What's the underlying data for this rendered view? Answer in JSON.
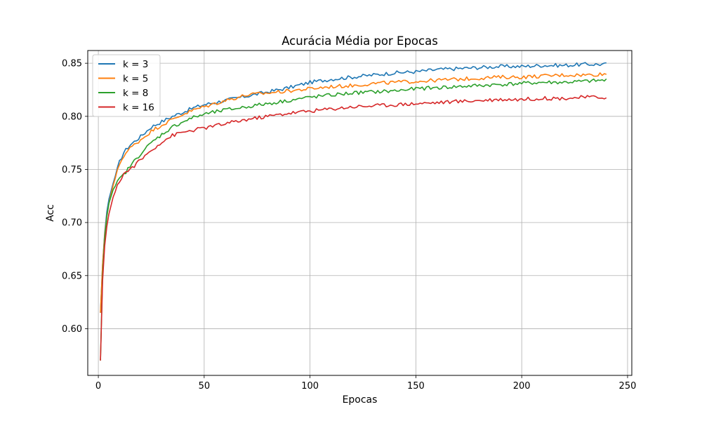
{
  "chart_data": {
    "type": "line",
    "title": "Acurácia Média por Epocas",
    "xlabel": "Epocas",
    "ylabel": "Acc",
    "xlim": [
      -5,
      252
    ],
    "ylim": [
      0.556,
      0.862
    ],
    "xticks": [
      0,
      50,
      100,
      150,
      200,
      250
    ],
    "yticks": [
      0.6,
      0.65,
      0.7,
      0.75,
      0.8,
      0.85
    ],
    "ytick_labels": [
      "0.60",
      "0.65",
      "0.70",
      "0.75",
      "0.80",
      "0.85"
    ],
    "grid": true,
    "legend_position": "top-left",
    "x_range": [
      1,
      240
    ],
    "series": [
      {
        "name": "k = 3",
        "color": "#1f77b4",
        "points": [
          [
            1,
            0.615
          ],
          [
            2,
            0.66
          ],
          [
            3,
            0.69
          ],
          [
            4,
            0.71
          ],
          [
            5,
            0.722
          ],
          [
            7,
            0.737
          ],
          [
            10,
            0.757
          ],
          [
            12,
            0.766
          ],
          [
            15,
            0.773
          ],
          [
            20,
            0.781
          ],
          [
            25,
            0.79
          ],
          [
            30,
            0.795
          ],
          [
            35,
            0.8
          ],
          [
            40,
            0.804
          ],
          [
            45,
            0.808
          ],
          [
            50,
            0.811
          ],
          [
            60,
            0.815
          ],
          [
            70,
            0.819
          ],
          [
            80,
            0.823
          ],
          [
            90,
            0.827
          ],
          [
            100,
            0.832
          ],
          [
            110,
            0.835
          ],
          [
            120,
            0.837
          ],
          [
            130,
            0.839
          ],
          [
            140,
            0.841
          ],
          [
            150,
            0.842
          ],
          [
            160,
            0.844
          ],
          [
            170,
            0.845
          ],
          [
            180,
            0.846
          ],
          [
            190,
            0.847
          ],
          [
            200,
            0.847
          ],
          [
            210,
            0.848
          ],
          [
            220,
            0.848
          ],
          [
            230,
            0.849
          ],
          [
            240,
            0.849
          ]
        ]
      },
      {
        "name": "k = 5",
        "color": "#ff7f0e",
        "points": [
          [
            1,
            0.615
          ],
          [
            2,
            0.66
          ],
          [
            3,
            0.688
          ],
          [
            4,
            0.706
          ],
          [
            5,
            0.718
          ],
          [
            7,
            0.735
          ],
          [
            10,
            0.755
          ],
          [
            12,
            0.763
          ],
          [
            15,
            0.77
          ],
          [
            20,
            0.778
          ],
          [
            25,
            0.786
          ],
          [
            30,
            0.792
          ],
          [
            35,
            0.797
          ],
          [
            40,
            0.802
          ],
          [
            45,
            0.806
          ],
          [
            50,
            0.809
          ],
          [
            60,
            0.815
          ],
          [
            70,
            0.82
          ],
          [
            80,
            0.822
          ],
          [
            90,
            0.824
          ],
          [
            100,
            0.826
          ],
          [
            110,
            0.828
          ],
          [
            120,
            0.829
          ],
          [
            130,
            0.831
          ],
          [
            140,
            0.832
          ],
          [
            150,
            0.833
          ],
          [
            160,
            0.834
          ],
          [
            170,
            0.835
          ],
          [
            180,
            0.836
          ],
          [
            190,
            0.837
          ],
          [
            200,
            0.837
          ],
          [
            210,
            0.838
          ],
          [
            220,
            0.839
          ],
          [
            230,
            0.839
          ],
          [
            240,
            0.84
          ]
        ]
      },
      {
        "name": "k = 8",
        "color": "#2ca02c",
        "points": [
          [
            1,
            0.57
          ],
          [
            2,
            0.65
          ],
          [
            3,
            0.685
          ],
          [
            4,
            0.705
          ],
          [
            5,
            0.718
          ],
          [
            7,
            0.731
          ],
          [
            10,
            0.741
          ],
          [
            12,
            0.745
          ],
          [
            15,
            0.753
          ],
          [
            20,
            0.765
          ],
          [
            25,
            0.775
          ],
          [
            30,
            0.783
          ],
          [
            35,
            0.79
          ],
          [
            40,
            0.795
          ],
          [
            45,
            0.799
          ],
          [
            50,
            0.802
          ],
          [
            60,
            0.806
          ],
          [
            70,
            0.809
          ],
          [
            80,
            0.812
          ],
          [
            90,
            0.815
          ],
          [
            100,
            0.818
          ],
          [
            110,
            0.82
          ],
          [
            120,
            0.822
          ],
          [
            130,
            0.823
          ],
          [
            140,
            0.824
          ],
          [
            150,
            0.826
          ],
          [
            160,
            0.827
          ],
          [
            170,
            0.828
          ],
          [
            180,
            0.829
          ],
          [
            190,
            0.83
          ],
          [
            200,
            0.831
          ],
          [
            210,
            0.832
          ],
          [
            220,
            0.832
          ],
          [
            230,
            0.833
          ],
          [
            240,
            0.834
          ]
        ]
      },
      {
        "name": "k = 16",
        "color": "#d62728",
        "points": [
          [
            1,
            0.57
          ],
          [
            2,
            0.645
          ],
          [
            3,
            0.678
          ],
          [
            4,
            0.696
          ],
          [
            5,
            0.708
          ],
          [
            7,
            0.724
          ],
          [
            10,
            0.739
          ],
          [
            12,
            0.746
          ],
          [
            15,
            0.75
          ],
          [
            20,
            0.759
          ],
          [
            25,
            0.768
          ],
          [
            30,
            0.776
          ],
          [
            35,
            0.782
          ],
          [
            40,
            0.785
          ],
          [
            45,
            0.787
          ],
          [
            50,
            0.789
          ],
          [
            60,
            0.793
          ],
          [
            70,
            0.797
          ],
          [
            80,
            0.8
          ],
          [
            90,
            0.803
          ],
          [
            100,
            0.805
          ],
          [
            110,
            0.807
          ],
          [
            120,
            0.809
          ],
          [
            130,
            0.81
          ],
          [
            140,
            0.811
          ],
          [
            150,
            0.812
          ],
          [
            160,
            0.813
          ],
          [
            170,
            0.814
          ],
          [
            180,
            0.815
          ],
          [
            190,
            0.816
          ],
          [
            200,
            0.816
          ],
          [
            210,
            0.817
          ],
          [
            220,
            0.817
          ],
          [
            230,
            0.818
          ],
          [
            240,
            0.818
          ]
        ]
      }
    ]
  }
}
